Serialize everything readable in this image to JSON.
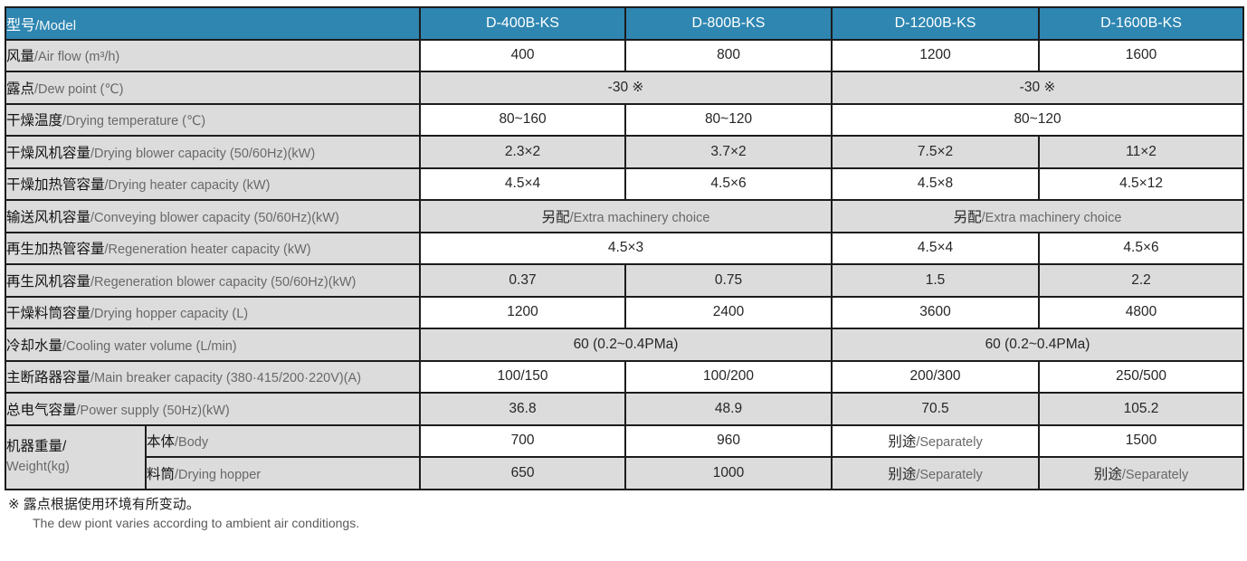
{
  "colors": {
    "header_bg": "#2e86b1",
    "header_text": "#ffffff",
    "stripe_bg": "#dcdcdd",
    "border": "#1c1c1c",
    "text_dark": "#1a1a1a",
    "text_gray": "#696969"
  },
  "table": {
    "header": {
      "label_zh": "型号",
      "label_en": "/Model",
      "models": [
        "D-400B-KS",
        "D-800B-KS",
        "D-1200B-KS",
        "D-1600B-KS"
      ]
    },
    "rows": [
      {
        "zh": "风量",
        "en": "/Air flow (m³/h)",
        "shade": false,
        "cells": [
          {
            "t": "400"
          },
          {
            "t": "800"
          },
          {
            "t": "1200"
          },
          {
            "t": "1600"
          }
        ]
      },
      {
        "zh": "露点",
        "en": "/Dew point (℃)",
        "shade": true,
        "cells": [
          {
            "t": "-30 ※",
            "span": 2
          },
          {
            "t": "-30 ※",
            "span": 2
          }
        ]
      },
      {
        "zh": "干燥温度",
        "en": "/Drying temperature (℃)",
        "shade": false,
        "cells": [
          {
            "t": "80~160"
          },
          {
            "t": "80~120"
          },
          {
            "t": "80~120",
            "span": 2
          }
        ]
      },
      {
        "zh": "干燥风机容量",
        "en": "/Drying blower capacity (50/60Hz)(kW)",
        "shade": true,
        "cells": [
          {
            "t": "2.3×2"
          },
          {
            "t": "3.7×2"
          },
          {
            "t": "7.5×2"
          },
          {
            "t": "11×2"
          }
        ]
      },
      {
        "zh": "干燥加热管容量",
        "en": "/Drying heater capacity (kW)",
        "shade": false,
        "cells": [
          {
            "t": "4.5×4"
          },
          {
            "t": "4.5×6"
          },
          {
            "t": "4.5×8"
          },
          {
            "t": "4.5×12"
          }
        ]
      },
      {
        "zh": "输送风机容量",
        "en": "/Conveying blower capacity (50/60Hz)(kW)",
        "shade": true,
        "cells": [
          {
            "t": "另配",
            "sub": "/Extra machinery choice",
            "span": 2
          },
          {
            "t": "另配",
            "sub": "/Extra machinery choice",
            "span": 2
          }
        ]
      },
      {
        "zh": "再生加热管容量",
        "en": "/Regeneration heater capacity (kW)",
        "shade": false,
        "cells": [
          {
            "t": "4.5×3",
            "span": 2
          },
          {
            "t": "4.5×4"
          },
          {
            "t": "4.5×6"
          }
        ]
      },
      {
        "zh": "再生风机容量",
        "en": "/Regeneration blower capacity (50/60Hz)(kW)",
        "shade": true,
        "cells": [
          {
            "t": "0.37"
          },
          {
            "t": "0.75"
          },
          {
            "t": "1.5"
          },
          {
            "t": "2.2"
          }
        ]
      },
      {
        "zh": "干燥料筒容量",
        "en": "/Drying hopper capacity (L)",
        "shade": false,
        "cells": [
          {
            "t": "1200"
          },
          {
            "t": "2400"
          },
          {
            "t": "3600"
          },
          {
            "t": "4800"
          }
        ]
      },
      {
        "zh": "冷却水量",
        "en": "/Cooling water volume (L/min)",
        "shade": true,
        "cells": [
          {
            "t": "60 (0.2~0.4PMa)",
            "span": 2
          },
          {
            "t": "60 (0.2~0.4PMa)",
            "span": 2
          }
        ]
      },
      {
        "zh": "主断路器容量",
        "en": "/Main breaker capacity (380·415/200·220V)(A)",
        "shade": false,
        "cells": [
          {
            "t": "100/150"
          },
          {
            "t": "100/200"
          },
          {
            "t": "200/300"
          },
          {
            "t": "250/500"
          }
        ]
      },
      {
        "zh": "总电气容量",
        "en": "/Power supply (50Hz)(kW)",
        "shade": true,
        "cells": [
          {
            "t": "36.8"
          },
          {
            "t": "48.9"
          },
          {
            "t": "70.5"
          },
          {
            "t": "105.2"
          }
        ]
      },
      {
        "group": {
          "zh": "机器重量/",
          "en": "Weight(kg)"
        },
        "rows": [
          {
            "zh": "本体",
            "en": "/Body",
            "shade": false,
            "cells": [
              {
                "t": "700"
              },
              {
                "t": "960"
              },
              {
                "t": "别途",
                "sub": "/Separately"
              },
              {
                "t": "1500"
              }
            ]
          },
          {
            "zh": "料筒",
            "en": "/Drying hopper",
            "shade": true,
            "cells": [
              {
                "t": "650"
              },
              {
                "t": "1000"
              },
              {
                "t": "别途",
                "sub": "/Separately"
              },
              {
                "t": "别途",
                "sub": "/Separately"
              }
            ]
          }
        ]
      }
    ]
  },
  "footnote": {
    "zh": "※ 露点根据使用环境有所变动。",
    "en": "The dew piont varies according to ambient air conditiongs."
  }
}
